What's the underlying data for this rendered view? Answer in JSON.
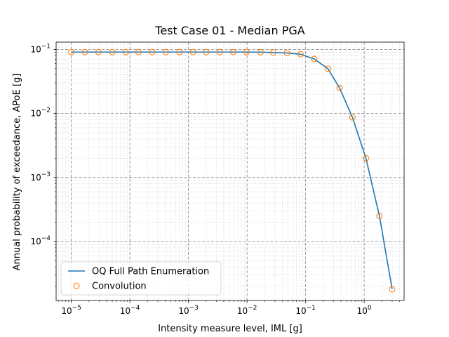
{
  "chart_data": {
    "type": "line",
    "title": "Test Case 01 - Median PGA",
    "xlabel": "Intensity measure level, IML [g]",
    "ylabel": "Annual probability of exceedance, APoE [g]",
    "xscale": "log",
    "yscale": "log",
    "xlim": [
      5.5e-06,
      4.8
    ],
    "ylim": [
      1.2e-05,
      0.13
    ],
    "xticks": [
      {
        "value": 1e-05,
        "base": "10",
        "exp": "−5"
      },
      {
        "value": 0.0001,
        "base": "10",
        "exp": "−4"
      },
      {
        "value": 0.001,
        "base": "10",
        "exp": "−3"
      },
      {
        "value": 0.01,
        "base": "10",
        "exp": "−2"
      },
      {
        "value": 0.1,
        "base": "10",
        "exp": "−1"
      },
      {
        "value": 1,
        "base": "10",
        "exp": "0"
      }
    ],
    "yticks": [
      {
        "value": 0.0001,
        "base": "10",
        "exp": "−4"
      },
      {
        "value": 0.001,
        "base": "10",
        "exp": "−3"
      },
      {
        "value": 0.01,
        "base": "10",
        "exp": "−2"
      },
      {
        "value": 0.1,
        "base": "10",
        "exp": "−1"
      }
    ],
    "grid": true,
    "legend_position": "lower-left",
    "series": [
      {
        "name": "OQ Full Path Enumeration",
        "style": "line",
        "color": "#1f77b4",
        "x": [
          1e-05,
          1.7e-05,
          2.9e-05,
          5e-05,
          8.5e-05,
          0.00014,
          0.00024,
          0.00041,
          0.0007,
          0.0012,
          0.002,
          0.0034,
          0.0058,
          0.0098,
          0.017,
          0.028,
          0.048,
          0.082,
          0.14,
          0.24,
          0.38,
          0.63,
          1.07,
          1.82,
          3.0
        ],
        "y": [
          0.091,
          0.091,
          0.091,
          0.091,
          0.091,
          0.091,
          0.091,
          0.091,
          0.091,
          0.091,
          0.091,
          0.091,
          0.091,
          0.091,
          0.0905,
          0.0895,
          0.088,
          0.084,
          0.071,
          0.05,
          0.025,
          0.0087,
          0.002,
          0.00025,
          1.8e-05
        ]
      },
      {
        "name": "Convolution",
        "style": "marker",
        "color": "#ff7f0e",
        "x": [
          1e-05,
          1.7e-05,
          2.9e-05,
          5e-05,
          8.5e-05,
          0.00014,
          0.00024,
          0.00041,
          0.0007,
          0.0012,
          0.002,
          0.0034,
          0.0058,
          0.0098,
          0.017,
          0.028,
          0.048,
          0.082,
          0.14,
          0.24,
          0.38,
          0.63,
          1.07,
          1.82,
          3.0
        ],
        "y": [
          0.091,
          0.091,
          0.091,
          0.091,
          0.091,
          0.091,
          0.091,
          0.091,
          0.091,
          0.091,
          0.091,
          0.091,
          0.091,
          0.091,
          0.0905,
          0.0895,
          0.088,
          0.084,
          0.071,
          0.05,
          0.025,
          0.0087,
          0.002,
          0.00025,
          1.8e-05
        ]
      }
    ]
  }
}
